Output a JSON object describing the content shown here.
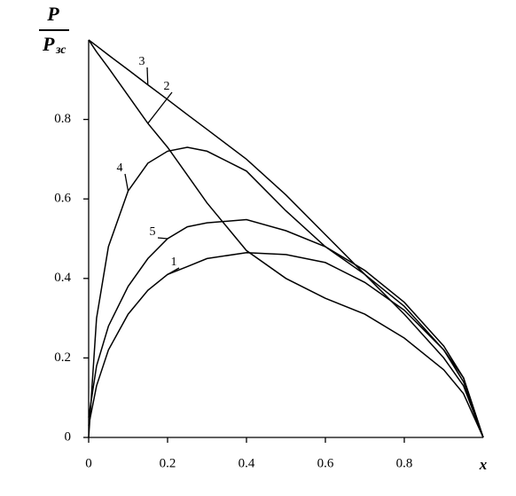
{
  "chart_data": {
    "type": "line",
    "ylabel_top": "P",
    "ylabel_bottom": "P",
    "ylabel_bottom_sub": "зс",
    "xlabel": "x",
    "x": [
      0,
      0.02,
      0.05,
      0.1,
      0.15,
      0.2,
      0.25,
      0.3,
      0.4,
      0.5,
      0.6,
      0.7,
      0.8,
      0.9,
      0.95,
      1
    ],
    "series": [
      {
        "name": "1",
        "color": "#000000",
        "values": [
          0.03,
          0.13,
          0.22,
          0.31,
          0.37,
          0.41,
          0.43,
          0.45,
          0.465,
          0.46,
          0.44,
          0.39,
          0.32,
          0.22,
          0.15,
          0
        ]
      },
      {
        "name": "2",
        "color": "#000000",
        "values": [
          1,
          0.97,
          0.93,
          0.86,
          0.79,
          0.73,
          0.66,
          0.59,
          0.47,
          0.4,
          0.35,
          0.31,
          0.25,
          0.17,
          0.11,
          0
        ]
      },
      {
        "name": "3",
        "color": "#000000",
        "values": [
          1,
          0.985,
          0.962,
          0.925,
          0.887,
          0.85,
          0.812,
          0.775,
          0.7,
          0.61,
          0.51,
          0.41,
          0.31,
          0.2,
          0.13,
          0
        ]
      },
      {
        "name": "4",
        "color": "#000000",
        "values": [
          0,
          0.3,
          0.48,
          0.62,
          0.69,
          0.72,
          0.73,
          0.72,
          0.67,
          0.57,
          0.48,
          0.41,
          0.33,
          0.22,
          0.14,
          0
        ]
      },
      {
        "name": "5",
        "color": "#000000",
        "values": [
          0.05,
          0.18,
          0.28,
          0.38,
          0.45,
          0.5,
          0.53,
          0.54,
          0.548,
          0.52,
          0.48,
          0.42,
          0.34,
          0.23,
          0.15,
          0
        ]
      }
    ],
    "xlim": [
      0,
      1
    ],
    "ylim": [
      0,
      1
    ],
    "xticks": [
      0,
      0.2,
      0.4,
      0.6,
      0.8
    ],
    "yticks": [
      0,
      0.2,
      0.4,
      0.6,
      0.8
    ]
  }
}
